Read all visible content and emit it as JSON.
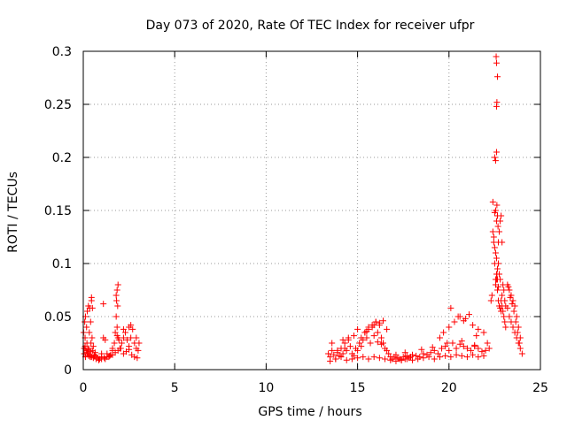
{
  "chart_data": {
    "type": "scatter",
    "title": "Day 073 of 2020, Rate Of TEC Index for receiver ufpr",
    "xlabel": "GPS time / hours",
    "ylabel": "ROTI / TECUs",
    "xlim": [
      0,
      25
    ],
    "ylim": [
      0,
      0.3
    ],
    "x_ticks": [
      0,
      5,
      10,
      15,
      20,
      25
    ],
    "x_tick_labels": [
      "0",
      "5",
      "10",
      "15",
      "20",
      "25"
    ],
    "y_ticks": [
      0,
      0.05,
      0.1,
      0.15,
      0.2,
      0.25,
      0.3
    ],
    "y_tick_labels": [
      "0",
      "0.05",
      "0.1",
      "0.15",
      "0.2",
      "0.25",
      "0.3"
    ],
    "grid": true,
    "marker": "+",
    "color": "#ff0000",
    "series": [
      {
        "x": [
          0.02,
          0.05,
          0.08,
          0.1,
          0.12,
          0.15,
          0.18,
          0.2,
          0.22,
          0.25,
          0.28,
          0.3,
          0.33,
          0.35,
          0.38,
          0.4,
          0.42,
          0.45,
          0.48,
          0.5,
          0.55,
          0.6,
          0.65,
          0.7,
          0.8,
          0.9,
          1.0,
          1.1,
          1.2,
          1.3,
          1.4,
          1.5,
          1.6,
          1.7,
          1.75,
          1.8,
          1.85,
          1.9,
          1.95,
          2.0,
          2.1,
          2.2,
          2.3,
          2.4,
          2.5,
          2.6,
          2.7,
          2.8,
          2.9,
          3.0,
          3.05,
          0.05,
          0.12,
          0.2,
          0.3,
          0.38,
          0.45,
          0.55,
          0.7,
          0.85,
          1.0,
          1.15,
          1.3,
          1.45,
          1.6,
          1.75,
          1.9,
          2.05,
          2.2,
          2.35,
          2.5,
          2.65,
          2.8,
          2.95,
          0.1,
          0.25,
          0.4,
          0.6,
          1.0,
          1.2,
          1.6,
          1.85,
          2.2,
          2.6,
          2.9,
          1.8,
          1.85,
          1.9,
          1.82,
          1.88,
          1.1,
          2.5,
          0.5,
          0.45
        ],
        "y": [
          0.035,
          0.02,
          0.045,
          0.03,
          0.05,
          0.018,
          0.04,
          0.025,
          0.055,
          0.015,
          0.06,
          0.02,
          0.035,
          0.058,
          0.012,
          0.045,
          0.025,
          0.068,
          0.03,
          0.018,
          0.022,
          0.014,
          0.016,
          0.012,
          0.011,
          0.01,
          0.012,
          0.03,
          0.01,
          0.015,
          0.012,
          0.014,
          0.02,
          0.025,
          0.035,
          0.05,
          0.04,
          0.03,
          0.028,
          0.02,
          0.025,
          0.03,
          0.035,
          0.028,
          0.022,
          0.03,
          0.038,
          0.025,
          0.02,
          0.018,
          0.025,
          0.015,
          0.012,
          0.016,
          0.013,
          0.014,
          0.012,
          0.011,
          0.01,
          0.009,
          0.01,
          0.011,
          0.012,
          0.013,
          0.014,
          0.016,
          0.018,
          0.02,
          0.015,
          0.017,
          0.019,
          0.014,
          0.012,
          0.011,
          0.022,
          0.019,
          0.017,
          0.013,
          0.015,
          0.028,
          0.018,
          0.032,
          0.038,
          0.042,
          0.03,
          0.07,
          0.075,
          0.08,
          0.065,
          0.06,
          0.062,
          0.04,
          0.058,
          0.065
        ]
      },
      {
        "x": [
          13.4,
          13.5,
          13.6,
          13.7,
          13.8,
          13.9,
          14.0,
          14.1,
          14.2,
          14.3,
          14.4,
          14.5,
          14.6,
          14.7,
          14.8,
          14.9,
          15.0,
          15.1,
          15.2,
          15.3,
          15.4,
          15.5,
          15.6,
          15.7,
          15.8,
          15.9,
          16.0,
          16.1,
          16.2,
          16.3,
          16.4,
          16.5,
          16.6,
          16.7,
          16.8,
          16.9,
          17.0,
          17.1,
          17.2,
          17.3,
          17.4,
          17.5,
          17.6,
          17.7,
          17.8,
          17.9,
          18.0,
          18.2,
          18.4,
          18.6,
          18.8,
          19.0,
          19.2,
          19.4,
          19.6,
          19.8,
          20.0,
          20.2,
          20.4,
          20.6,
          20.8,
          21.0,
          21.2,
          21.4,
          21.6,
          21.8,
          22.0,
          22.2,
          13.5,
          13.8,
          14.1,
          14.4,
          14.7,
          15.0,
          15.3,
          15.6,
          15.9,
          16.2,
          16.5,
          16.8,
          17.1,
          17.4,
          17.7,
          18.0,
          18.3,
          18.6,
          18.9,
          19.2,
          19.5,
          19.8,
          20.1,
          20.4,
          20.7,
          21.0,
          21.3,
          21.6,
          21.9,
          14.3,
          14.5,
          14.8,
          15.0,
          15.4,
          15.6,
          15.8,
          16.0,
          16.2,
          16.4,
          16.6,
          16.1,
          15.9,
          15.5,
          14.2,
          13.6,
          19.5,
          19.7,
          20.0,
          20.3,
          20.6,
          20.9,
          21.3,
          21.6,
          21.9,
          20.1,
          20.5,
          20.8,
          21.1,
          21.5,
          13.9,
          15.2,
          16.3,
          17.6,
          18.5,
          19.1,
          19.9,
          20.7,
          21.4,
          22.1
        ],
        "y": [
          0.015,
          0.012,
          0.018,
          0.014,
          0.01,
          0.016,
          0.013,
          0.02,
          0.015,
          0.025,
          0.018,
          0.03,
          0.022,
          0.015,
          0.013,
          0.02,
          0.018,
          0.025,
          0.03,
          0.028,
          0.035,
          0.03,
          0.038,
          0.025,
          0.04,
          0.032,
          0.045,
          0.035,
          0.042,
          0.03,
          0.025,
          0.02,
          0.018,
          0.015,
          0.012,
          0.01,
          0.012,
          0.014,
          0.011,
          0.01,
          0.009,
          0.012,
          0.01,
          0.013,
          0.011,
          0.012,
          0.014,
          0.013,
          0.012,
          0.015,
          0.014,
          0.016,
          0.018,
          0.015,
          0.02,
          0.022,
          0.018,
          0.025,
          0.02,
          0.024,
          0.022,
          0.02,
          0.018,
          0.022,
          0.02,
          0.017,
          0.018,
          0.02,
          0.008,
          0.01,
          0.012,
          0.009,
          0.01,
          0.011,
          0.012,
          0.01,
          0.012,
          0.011,
          0.01,
          0.009,
          0.008,
          0.009,
          0.01,
          0.009,
          0.01,
          0.011,
          0.012,
          0.01,
          0.012,
          0.013,
          0.012,
          0.014,
          0.013,
          0.012,
          0.014,
          0.012,
          0.013,
          0.02,
          0.028,
          0.032,
          0.038,
          0.035,
          0.04,
          0.042,
          0.045,
          0.044,
          0.046,
          0.038,
          0.026,
          0.042,
          0.036,
          0.028,
          0.025,
          0.03,
          0.035,
          0.04,
          0.045,
          0.05,
          0.048,
          0.042,
          0.038,
          0.035,
          0.058,
          0.05,
          0.046,
          0.052,
          0.032,
          0.018,
          0.022,
          0.024,
          0.016,
          0.019,
          0.021,
          0.025,
          0.027,
          0.023,
          0.025
        ]
      },
      {
        "x": [
          22.3,
          22.35,
          22.4,
          22.45,
          22.5,
          22.55,
          22.6,
          22.65,
          22.7,
          22.75,
          22.8,
          22.85,
          22.9,
          22.95,
          23.0,
          23.05,
          23.1,
          23.2,
          23.3,
          23.4,
          23.5,
          23.6,
          23.7,
          23.8,
          23.9,
          24.0,
          22.4,
          22.45,
          22.5,
          22.55,
          22.6,
          22.65,
          22.7,
          22.75,
          22.8,
          22.85,
          22.9,
          22.5,
          22.55,
          22.6,
          22.62,
          22.65,
          22.68,
          22.7,
          22.55,
          22.6,
          22.65,
          22.7,
          22.75,
          22.8,
          22.85,
          22.9,
          22.95,
          23.0,
          23.05,
          23.1,
          22.5,
          22.55,
          22.6,
          22.6,
          22.62,
          22.65,
          22.58,
          22.6,
          22.62,
          22.65,
          22.7,
          23.2,
          23.3,
          23.4,
          23.5,
          23.6,
          23.7,
          23.8,
          23.9,
          23.25,
          23.35,
          23.45,
          23.55,
          23.65,
          23.75,
          23.85
        ],
        "y": [
          0.065,
          0.07,
          0.158,
          0.12,
          0.1,
          0.085,
          0.09,
          0.075,
          0.065,
          0.06,
          0.058,
          0.055,
          0.07,
          0.08,
          0.075,
          0.065,
          0.06,
          0.058,
          0.05,
          0.045,
          0.04,
          0.035,
          0.03,
          0.025,
          0.02,
          0.015,
          0.13,
          0.125,
          0.115,
          0.11,
          0.105,
          0.095,
          0.1,
          0.13,
          0.14,
          0.145,
          0.12,
          0.148,
          0.15,
          0.14,
          0.155,
          0.145,
          0.135,
          0.12,
          0.08,
          0.085,
          0.095,
          0.1,
          0.09,
          0.085,
          0.065,
          0.06,
          0.055,
          0.05,
          0.045,
          0.04,
          0.2,
          0.197,
          0.205,
          0.248,
          0.252,
          0.276,
          0.295,
          0.289,
          0.09,
          0.085,
          0.078,
          0.08,
          0.075,
          0.07,
          0.065,
          0.06,
          0.05,
          0.04,
          0.03,
          0.078,
          0.068,
          0.062,
          0.055,
          0.045,
          0.035,
          0.025
        ]
      }
    ]
  }
}
